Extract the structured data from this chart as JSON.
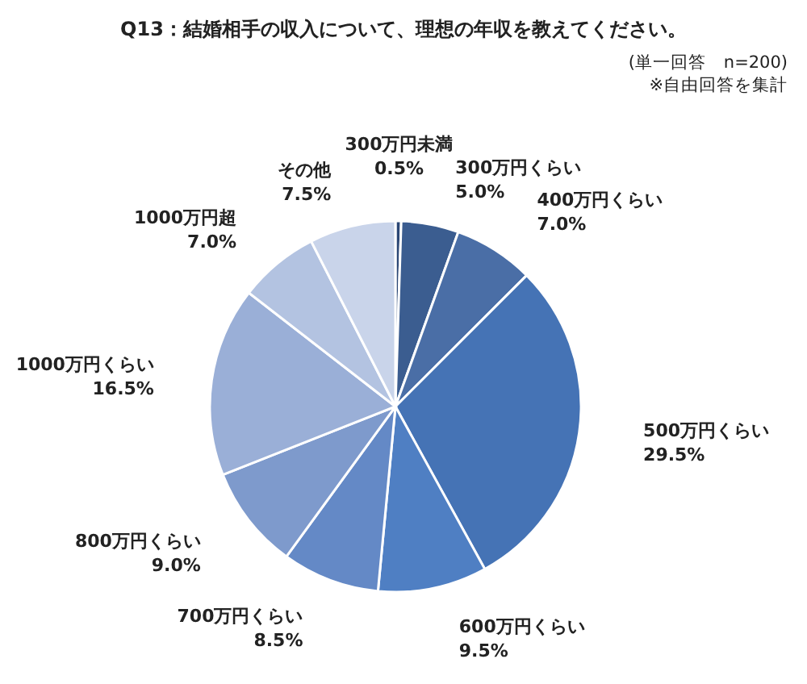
{
  "chart_data": {
    "type": "pie",
    "title": "Q13：結婚相手の収入について、理想の年収を教えてください。",
    "annotations": [
      "(単一回答　n=200)",
      "※自由回答を集計"
    ],
    "categories": [
      "300万円未満",
      "300万円くらい",
      "400万円くらい",
      "500万円くらい",
      "600万円くらい",
      "700万円くらい",
      "800万円くらい",
      "1000万円くらい",
      "1000万円超",
      "その他"
    ],
    "values": [
      0.5,
      5.0,
      7.0,
      29.5,
      9.5,
      8.5,
      9.0,
      16.5,
      7.0,
      7.5
    ],
    "value_labels": [
      "0.5%",
      "5.0%",
      "7.0%",
      "29.5%",
      "9.5%",
      "8.5%",
      "9.0%",
      "16.5%",
      "7.0%",
      "7.5%"
    ],
    "colors": [
      "#2b4775",
      "#3b5d90",
      "#4a6ea6",
      "#4573b5",
      "#4f7fc3",
      "#6489c6",
      "#7e9acc",
      "#9aafd7",
      "#b3c3e1",
      "#c9d4ea"
    ]
  }
}
